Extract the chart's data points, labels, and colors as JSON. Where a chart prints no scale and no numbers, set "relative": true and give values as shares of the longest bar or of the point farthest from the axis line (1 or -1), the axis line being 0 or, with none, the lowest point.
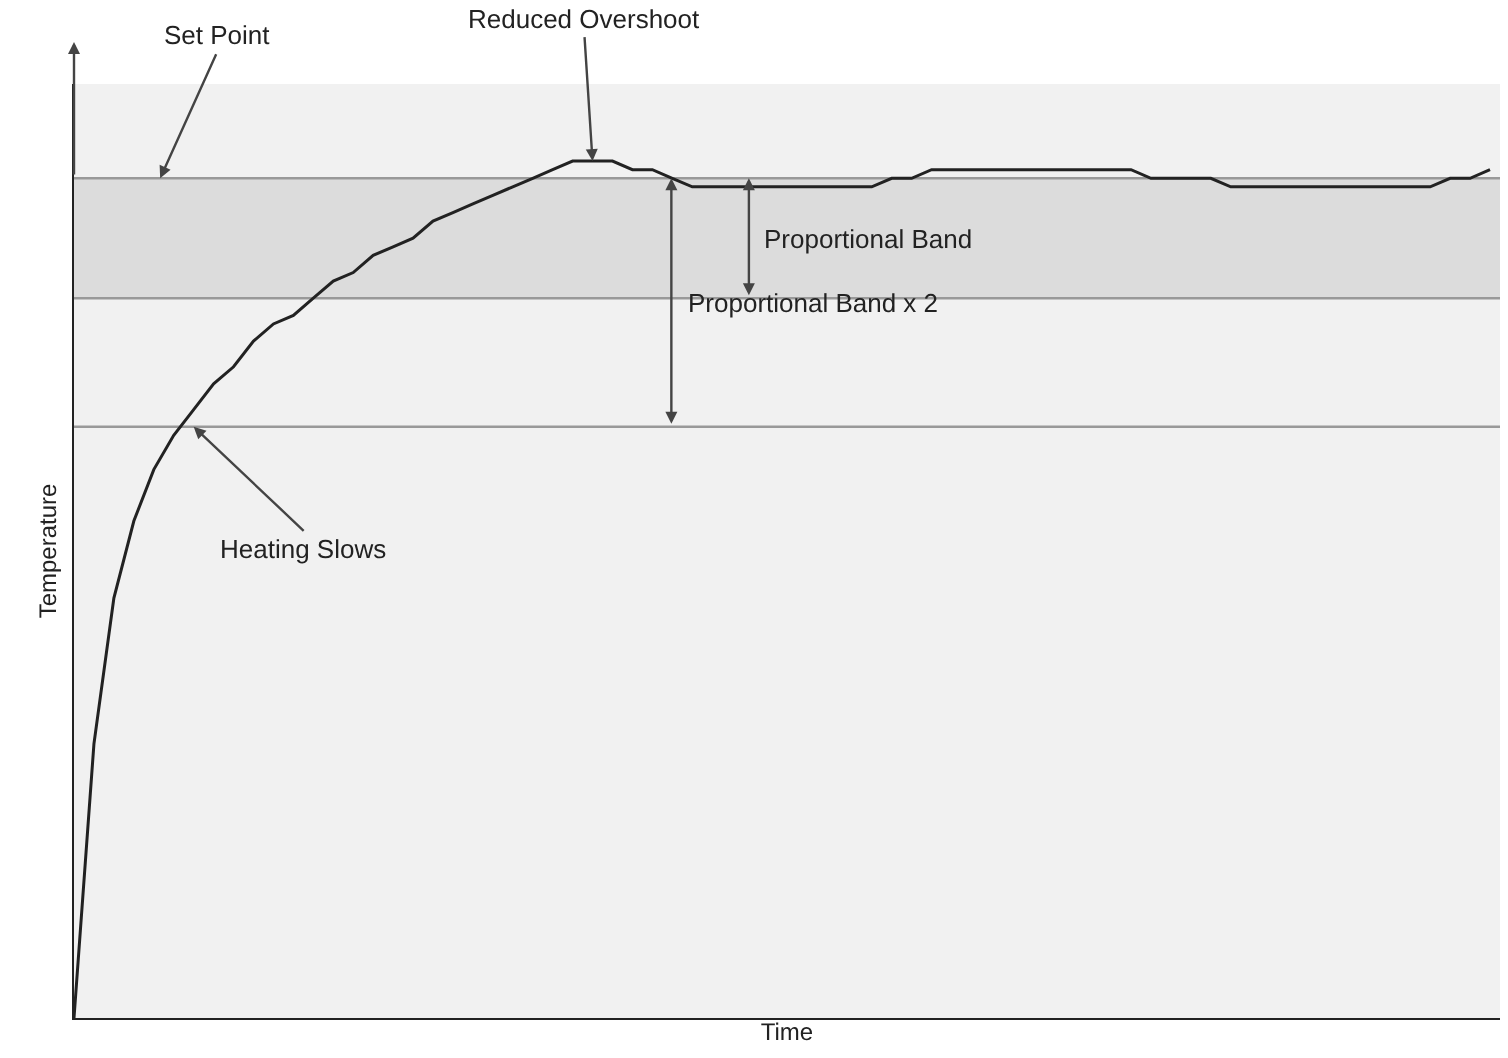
{
  "chart_data": {
    "type": "line",
    "relative": true,
    "xlabel": "Time",
    "ylabel": "Temperature",
    "categories": [
      null,
      null,
      null,
      null,
      null,
      null,
      null,
      null,
      null,
      null,
      null,
      null,
      null,
      null,
      null,
      null,
      null,
      null,
      null,
      null,
      null,
      null,
      null,
      null,
      null,
      null,
      null,
      null,
      null,
      null,
      null,
      null,
      null,
      null,
      null,
      null,
      null,
      null,
      null,
      null,
      null,
      null,
      null,
      null,
      null,
      null,
      null,
      null,
      null,
      null,
      null,
      null,
      null,
      null,
      null,
      null,
      null,
      null,
      null,
      null,
      null,
      null,
      null,
      null,
      null,
      null,
      null,
      null,
      null,
      null,
      null,
      null
    ],
    "series": [
      {
        "color": "#222222",
        "values": [
          0,
          0.32,
          0.49,
          0.58,
          0.64,
          0.68,
          0.71,
          0.74,
          0.76,
          0.79,
          0.81,
          0.82,
          0.84,
          0.86,
          0.87,
          0.89,
          0.9,
          0.91,
          0.93,
          0.94,
          0.95,
          0.96,
          0.97,
          0.98,
          0.99,
          1.0,
          1.0,
          1.0,
          0.99,
          0.99,
          0.98,
          0.97,
          0.97,
          0.97,
          0.97,
          0.97,
          0.97,
          0.97,
          0.97,
          0.97,
          0.97,
          0.98,
          0.98,
          0.99,
          0.99,
          0.99,
          0.99,
          0.99,
          0.99,
          0.99,
          0.99,
          0.99,
          0.99,
          0.99,
          0.98,
          0.98,
          0.98,
          0.98,
          0.97,
          0.97,
          0.97,
          0.97,
          0.97,
          0.97,
          0.97,
          0.97,
          0.97,
          0.97,
          0.97,
          0.98,
          0.98,
          0.99
        ]
      }
    ],
    "ref_lines": [
      {
        "axis": "y",
        "value": 0.98,
        "label": "Set Point",
        "color": "#999999"
      },
      {
        "axis": "y",
        "value": 0.84,
        "color": "#999999"
      },
      {
        "axis": "y",
        "value": 0.69,
        "color": "#999999"
      }
    ],
    "bands": [
      {
        "axis": "y",
        "from": 0.84,
        "to": 0.98,
        "label": "Proportional Band",
        "color": "#dcdcdc"
      }
    ],
    "annotations": [
      "Reduced Overshoot",
      "Heating Slows",
      "Proportional Band x 2"
    ],
    "grid": false,
    "marker": "none",
    "line_style": "solid"
  }
}
